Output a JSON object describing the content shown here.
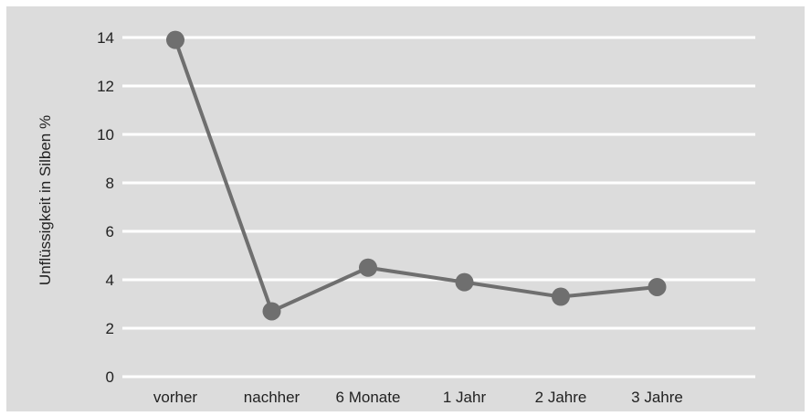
{
  "chart_data": {
    "type": "line",
    "title": "",
    "xlabel": "",
    "ylabel": "Unflüssigkeit in Silben %",
    "categories": [
      "vorher",
      "nachher",
      "6 Monate",
      "1 Jahr",
      "2 Jahre",
      "3 Jahre"
    ],
    "series": [
      {
        "values": [
          13.9,
          2.7,
          4.5,
          3.9,
          3.3,
          3.7
        ]
      }
    ],
    "ylim": [
      0,
      14
    ],
    "yticks": [
      "0",
      "2",
      "4",
      "6",
      "8",
      "10",
      "12",
      "14"
    ],
    "grid": true,
    "legend": "none",
    "colors": {
      "background": "#dcdcdc",
      "gridline": "#ffffff",
      "line": "#6f6f6f",
      "text": "#222222"
    }
  }
}
